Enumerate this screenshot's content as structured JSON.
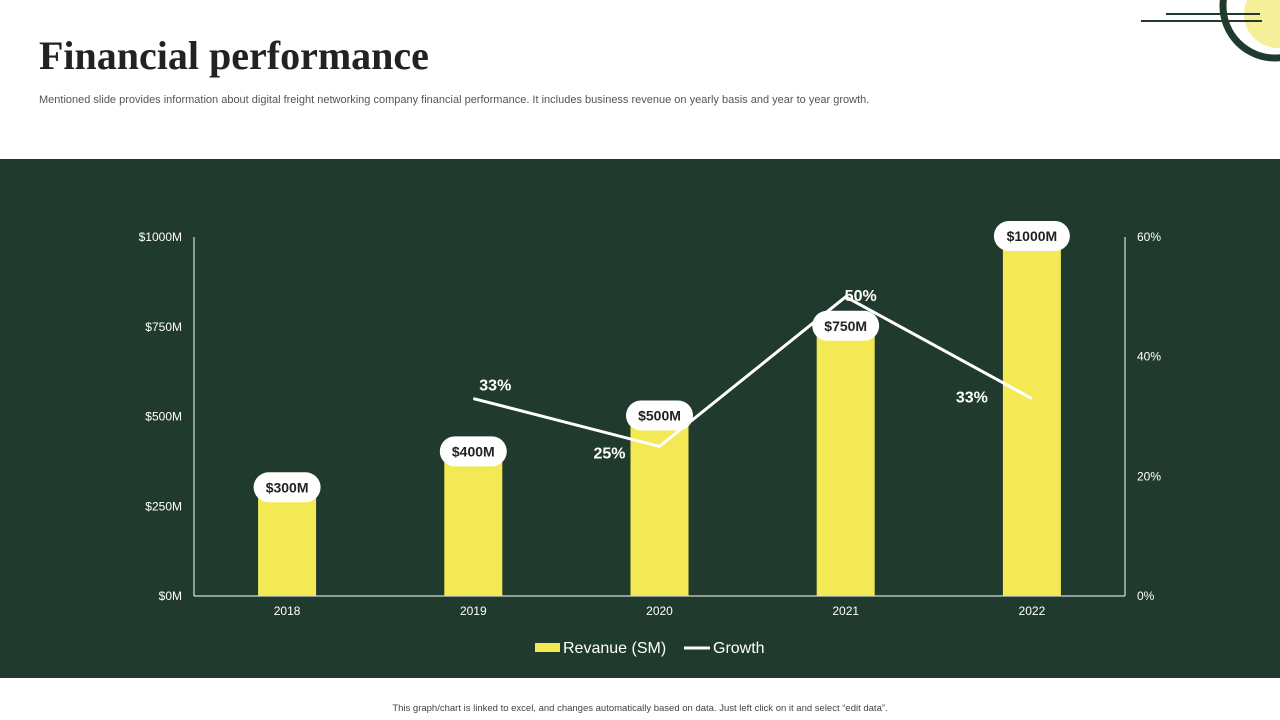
{
  "header": {
    "title": "Financial performance",
    "subtitle": "Mentioned slide provides information about digital freight networking company financial performance. It includes business revenue on yearly basis and year to year growth."
  },
  "footnote": "This graph/chart is linked to excel, and changes automatically based on data. Just left click on it and select “edit data”.",
  "colors": {
    "panel": "#213a2e",
    "bar": "#f2e955",
    "line": "#ffffff",
    "accent_circle": "#f5ef9a"
  },
  "chart_data": {
    "type": "bar",
    "categories": [
      "2018",
      "2019",
      "2020",
      "2021",
      "2022"
    ],
    "series": [
      {
        "name": "Revanue (SM)",
        "type": "bar",
        "axis": "left",
        "values": [
          300,
          400,
          500,
          750,
          1000
        ],
        "labels": [
          "$300M",
          "$400M",
          "$500M",
          "$750M",
          "$1000M"
        ]
      },
      {
        "name": "Growth",
        "type": "line",
        "axis": "right",
        "values": [
          null,
          33,
          25,
          50,
          33
        ],
        "labels": [
          "",
          "33%",
          "25%",
          "50%",
          "33%"
        ]
      }
    ],
    "y_left": {
      "lim": [
        0,
        1000
      ],
      "ticks": [
        "$0M",
        "$250M",
        "$500M",
        "$750M",
        "$1000M"
      ]
    },
    "y_right": {
      "lim": [
        0,
        60
      ],
      "ticks": [
        "0%",
        "20%",
        "40%",
        "60%"
      ]
    },
    "legend": "bottom",
    "grid": false
  }
}
